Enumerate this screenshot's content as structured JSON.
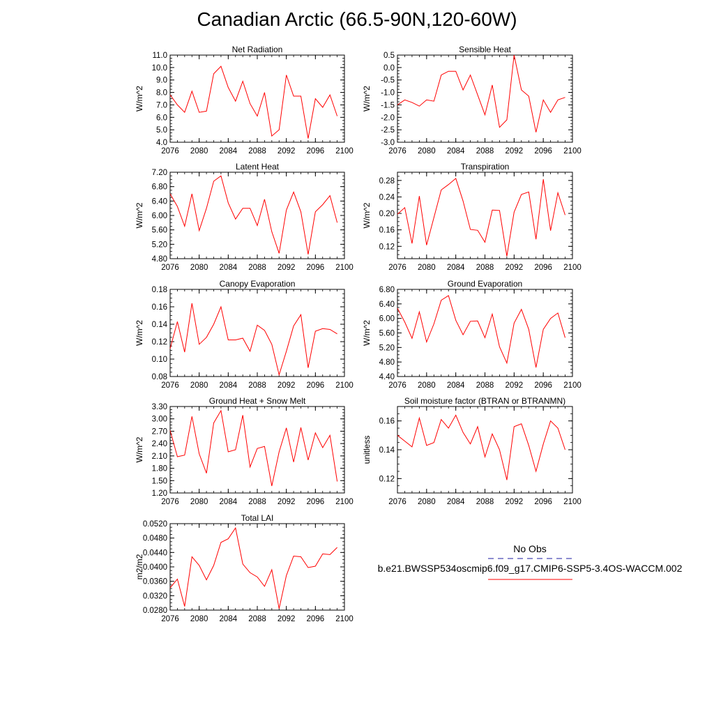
{
  "title": "Canadian Arctic (66.5-90N,120-60W)",
  "colors": {
    "series": "#ff0000",
    "obs": "#1a1aa0",
    "axis": "#000000"
  },
  "chart_data": [
    {
      "type": "line",
      "title": "Net Radiation",
      "ylabel": "W/m^2",
      "xlim": [
        2076,
        2100
      ],
      "ylim": [
        4.0,
        11.0
      ],
      "xticks": [
        "2076",
        "2080",
        "2084",
        "2088",
        "2092",
        "2096",
        "2100"
      ],
      "yticks": [
        "11.0",
        "10.0",
        "9.0",
        "8.0",
        "7.0",
        "6.0",
        "5.0",
        "4.0"
      ],
      "series": [
        {
          "x": [
            2076,
            2077,
            2078,
            2079,
            2080,
            2081,
            2082,
            2083,
            2084,
            2085,
            2086,
            2087,
            2088,
            2089,
            2090,
            2091,
            2092,
            2093,
            2094,
            2095,
            2096,
            2097,
            2098,
            2099
          ],
          "values": [
            7.8,
            7.0,
            6.4,
            8.1,
            6.4,
            6.5,
            9.5,
            10.1,
            8.4,
            7.3,
            8.9,
            7.1,
            6.1,
            8.0,
            4.5,
            5.0,
            9.4,
            7.7,
            7.7,
            4.3,
            7.5,
            6.8,
            7.8,
            6.1
          ]
        }
      ]
    },
    {
      "type": "line",
      "title": "Sensible Heat",
      "ylabel": "W/m^2",
      "xlim": [
        2076,
        2100
      ],
      "ylim": [
        -3.0,
        0.5
      ],
      "xticks": [
        "2076",
        "2080",
        "2084",
        "2088",
        "2092",
        "2096",
        "2100"
      ],
      "yticks": [
        "0.5",
        "0.0",
        "-0.5",
        "-1.0",
        "-1.5",
        "-2.0",
        "-2.5",
        "-3.0"
      ],
      "series": [
        {
          "x": [
            2076,
            2077,
            2078,
            2079,
            2080,
            2081,
            2082,
            2083,
            2084,
            2085,
            2086,
            2087,
            2088,
            2089,
            2090,
            2091,
            2092,
            2093,
            2094,
            2095,
            2096,
            2097,
            2098,
            2099
          ],
          "values": [
            -1.5,
            -1.3,
            -1.4,
            -1.55,
            -1.3,
            -1.35,
            -0.3,
            -0.15,
            -0.15,
            -0.9,
            -0.3,
            -1.1,
            -1.9,
            -0.7,
            -2.4,
            -2.1,
            0.5,
            -0.9,
            -1.15,
            -2.6,
            -1.3,
            -1.8,
            -1.3,
            -1.2
          ]
        }
      ]
    },
    {
      "type": "line",
      "title": "Latent Heat",
      "ylabel": "W/m^2",
      "xlim": [
        2076,
        2100
      ],
      "ylim": [
        4.8,
        7.2
      ],
      "xticks": [
        "2076",
        "2080",
        "2084",
        "2088",
        "2092",
        "2096",
        "2100"
      ],
      "yticks": [
        "7.20",
        "6.80",
        "6.40",
        "6.00",
        "5.60",
        "5.20",
        "4.80"
      ],
      "series": [
        {
          "x": [
            2076,
            2077,
            2078,
            2079,
            2080,
            2081,
            2082,
            2083,
            2084,
            2085,
            2086,
            2087,
            2088,
            2089,
            2090,
            2091,
            2092,
            2093,
            2094,
            2095,
            2096,
            2097,
            2098,
            2099
          ],
          "values": [
            6.6,
            6.25,
            5.7,
            6.6,
            5.58,
            6.2,
            6.95,
            7.1,
            6.35,
            5.9,
            6.2,
            6.2,
            5.72,
            6.45,
            5.55,
            4.95,
            6.15,
            6.65,
            6.1,
            4.92,
            6.1,
            6.3,
            6.55,
            5.8
          ]
        }
      ]
    },
    {
      "type": "line",
      "title": "Transpiration",
      "ylabel": "W/m^2",
      "xlim": [
        2076,
        2100
      ],
      "ylim": [
        0.09,
        0.3
      ],
      "xticks": [
        "2076",
        "2080",
        "2084",
        "2088",
        "2092",
        "2096",
        "2100"
      ],
      "yticks": [
        "0.28",
        "0.24",
        "0.20",
        "0.16",
        "0.12"
      ],
      "series": [
        {
          "x": [
            2076,
            2077,
            2078,
            2079,
            2080,
            2081,
            2082,
            2083,
            2084,
            2085,
            2086,
            2087,
            2088,
            2089,
            2090,
            2091,
            2092,
            2093,
            2094,
            2095,
            2096,
            2097,
            2098,
            2099
          ],
          "values": [
            0.198,
            0.214,
            0.127,
            0.242,
            0.123,
            0.19,
            0.257,
            0.27,
            0.285,
            0.23,
            0.161,
            0.159,
            0.13,
            0.208,
            0.207,
            0.096,
            0.203,
            0.246,
            0.252,
            0.137,
            0.283,
            0.158,
            0.25,
            0.196
          ]
        }
      ]
    },
    {
      "type": "line",
      "title": "Canopy Evaporation",
      "ylabel": "W/m^2",
      "xlim": [
        2076,
        2100
      ],
      "ylim": [
        0.08,
        0.18
      ],
      "xticks": [
        "2076",
        "2080",
        "2084",
        "2088",
        "2092",
        "2096",
        "2100"
      ],
      "yticks": [
        "0.18",
        "0.16",
        "0.14",
        "0.12",
        "0.10",
        "0.08"
      ],
      "series": [
        {
          "x": [
            2076,
            2077,
            2078,
            2079,
            2080,
            2081,
            2082,
            2083,
            2084,
            2085,
            2086,
            2087,
            2088,
            2089,
            2090,
            2091,
            2092,
            2093,
            2094,
            2095,
            2096,
            2097,
            2098,
            2099
          ],
          "values": [
            0.112,
            0.143,
            0.108,
            0.164,
            0.117,
            0.125,
            0.14,
            0.16,
            0.122,
            0.122,
            0.124,
            0.109,
            0.139,
            0.133,
            0.117,
            0.082,
            0.109,
            0.138,
            0.151,
            0.09,
            0.132,
            0.135,
            0.134,
            0.129
          ]
        }
      ]
    },
    {
      "type": "line",
      "title": "Ground Evaporation",
      "ylabel": "W/m^2",
      "xlim": [
        2076,
        2100
      ],
      "ylim": [
        4.4,
        6.8
      ],
      "xticks": [
        "2076",
        "2080",
        "2084",
        "2088",
        "2092",
        "2096",
        "2100"
      ],
      "yticks": [
        "6.80",
        "6.40",
        "6.00",
        "5.60",
        "5.20",
        "4.80",
        "4.40"
      ],
      "series": [
        {
          "x": [
            2076,
            2077,
            2078,
            2079,
            2080,
            2081,
            2082,
            2083,
            2084,
            2085,
            2086,
            2087,
            2088,
            2089,
            2090,
            2091,
            2092,
            2093,
            2094,
            2095,
            2096,
            2097,
            2098,
            2099
          ],
          "values": [
            6.28,
            5.9,
            5.45,
            6.18,
            5.35,
            5.85,
            6.5,
            6.63,
            5.95,
            5.55,
            5.92,
            5.93,
            5.47,
            6.12,
            5.22,
            4.77,
            5.87,
            6.25,
            5.7,
            4.65,
            5.7,
            6.0,
            6.15,
            5.47
          ]
        }
      ]
    },
    {
      "type": "line",
      "title": "Ground Heat + Snow Melt",
      "ylabel": "W/m^2",
      "xlim": [
        2076,
        2100
      ],
      "ylim": [
        1.2,
        3.3
      ],
      "xticks": [
        "2076",
        "2080",
        "2084",
        "2088",
        "2092",
        "2096",
        "2100"
      ],
      "yticks": [
        "3.30",
        "3.00",
        "2.70",
        "2.40",
        "2.10",
        "1.80",
        "1.50",
        "1.20"
      ],
      "series": [
        {
          "x": [
            2076,
            2077,
            2078,
            2079,
            2080,
            2081,
            2082,
            2083,
            2084,
            2085,
            2086,
            2087,
            2088,
            2089,
            2090,
            2091,
            2092,
            2093,
            2094,
            2095,
            2096,
            2097,
            2098,
            2099
          ],
          "values": [
            2.72,
            2.08,
            2.12,
            3.06,
            2.15,
            1.68,
            2.9,
            3.2,
            2.2,
            2.25,
            3.09,
            1.83,
            2.28,
            2.33,
            1.37,
            2.2,
            2.78,
            1.95,
            2.79,
            2.0,
            2.66,
            2.3,
            2.6,
            1.48
          ]
        }
      ]
    },
    {
      "type": "line",
      "title": "Soil moisture factor (BTRAN or BTRANMN)",
      "ylabel": "unitless",
      "xlim": [
        2076,
        2100
      ],
      "ylim": [
        0.11,
        0.17
      ],
      "xticks": [
        "2076",
        "2080",
        "2084",
        "2088",
        "2092",
        "2096",
        "2100"
      ],
      "yticks": [
        "0.16",
        "0.14",
        "0.12"
      ],
      "series": [
        {
          "x": [
            2076,
            2077,
            2078,
            2079,
            2080,
            2081,
            2082,
            2083,
            2084,
            2085,
            2086,
            2087,
            2088,
            2089,
            2090,
            2091,
            2092,
            2093,
            2094,
            2095,
            2096,
            2097,
            2098,
            2099
          ],
          "values": [
            0.15,
            0.146,
            0.142,
            0.162,
            0.143,
            0.145,
            0.161,
            0.155,
            0.164,
            0.152,
            0.144,
            0.156,
            0.135,
            0.151,
            0.14,
            0.119,
            0.156,
            0.158,
            0.143,
            0.125,
            0.144,
            0.16,
            0.155,
            0.14
          ]
        }
      ]
    },
    {
      "type": "line",
      "title": "Total LAI",
      "ylabel": "m2/m2",
      "xlim": [
        2076,
        2100
      ],
      "ylim": [
        0.028,
        0.052
      ],
      "xticks": [
        "2076",
        "2080",
        "2084",
        "2088",
        "2092",
        "2096",
        "2100"
      ],
      "yticks": [
        "0.0520",
        "0.0480",
        "0.0440",
        "0.0400",
        "0.0360",
        "0.0320",
        "0.0280"
      ],
      "series": [
        {
          "x": [
            2076,
            2077,
            2078,
            2079,
            2080,
            2081,
            2082,
            2083,
            2084,
            2085,
            2086,
            2087,
            2088,
            2089,
            2090,
            2091,
            2092,
            2093,
            2094,
            2095,
            2096,
            2097,
            2098,
            2099
          ],
          "values": [
            0.0342,
            0.0366,
            0.029,
            0.0428,
            0.0404,
            0.0364,
            0.0404,
            0.0468,
            0.0478,
            0.0508,
            0.0408,
            0.0384,
            0.0372,
            0.0346,
            0.0392,
            0.0284,
            0.0376,
            0.043,
            0.0428,
            0.0398,
            0.0402,
            0.0436,
            0.0434,
            0.0454
          ]
        }
      ]
    }
  ],
  "legend": {
    "obs_label": "No Obs",
    "model_label": "b.e21.BWSSP534oscmip6.f09_g17.CMIP6-SSP5-3.4OS-WACCM.002"
  }
}
